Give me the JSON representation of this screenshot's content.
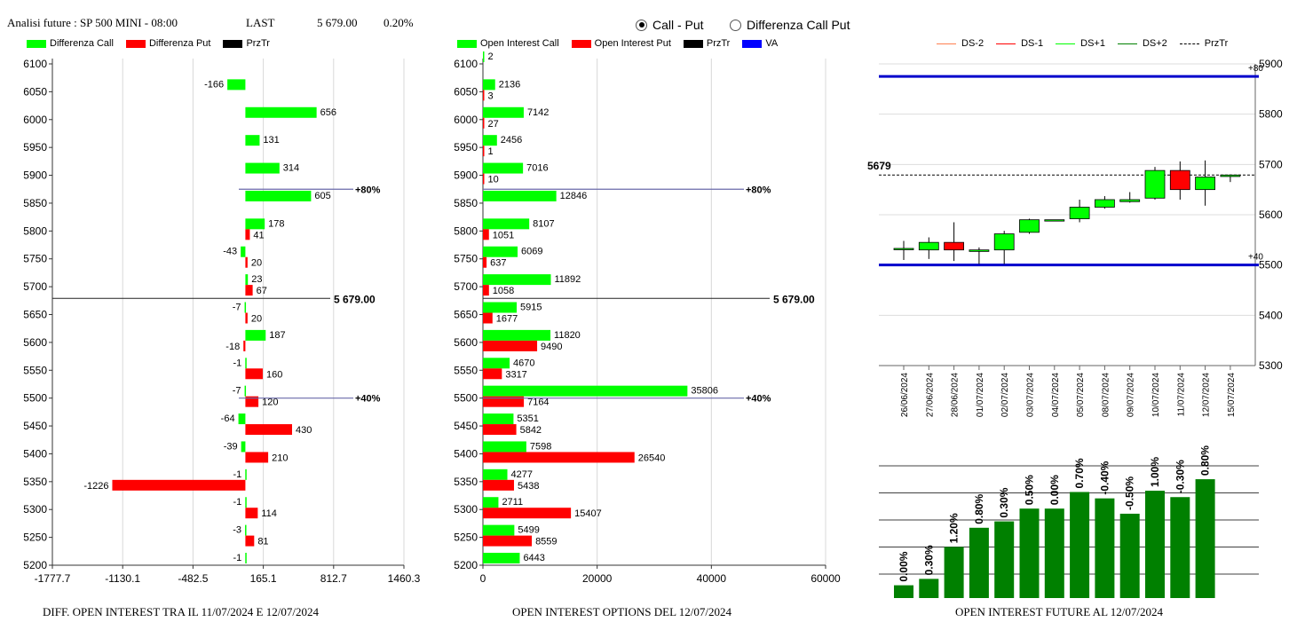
{
  "header": {
    "title": "Analisi future : SP 500 MINI - 08:00",
    "last_label": "LAST",
    "last_value": "5 679.00",
    "change": "0.20%"
  },
  "mode": {
    "option_call_put": "Call - Put",
    "option_diff": "Differenza Call Put",
    "selected": "Call - Put"
  },
  "panel1": {
    "legend": [
      {
        "label": "Differenza Call",
        "color": "#00ff00",
        "kind": "box"
      },
      {
        "label": "Differenza Put",
        "color": "#ff0000",
        "kind": "box"
      },
      {
        "label": "PrzTr",
        "color": "#000000",
        "kind": "box"
      }
    ],
    "caption": "DIFF. OPEN INTEREST TRA IL 11/07/2024 E 12/07/2024"
  },
  "panel2": {
    "legend": [
      {
        "label": "Open Interest Call",
        "color": "#00ff00",
        "kind": "box"
      },
      {
        "label": "Open Interest Put",
        "color": "#ff0000",
        "kind": "box"
      },
      {
        "label": "PrzTr",
        "color": "#000000",
        "kind": "box"
      },
      {
        "label": "VA",
        "color": "#0000ff",
        "kind": "box"
      }
    ],
    "caption": "OPEN INTEREST OPTIONS DEL 12/07/2024"
  },
  "panel3": {
    "legend": [
      {
        "label": "DS-2",
        "color": "#ff7f50",
        "kind": "line"
      },
      {
        "label": "DS-1",
        "color": "#ff0000",
        "kind": "line"
      },
      {
        "label": "DS+1",
        "color": "#00ff00",
        "kind": "line"
      },
      {
        "label": "DS+2",
        "color": "#008000",
        "kind": "line"
      },
      {
        "label": "PrzTr",
        "color": "#000000",
        "kind": "dash"
      }
    ],
    "caption": "OPEN INTEREST FUTURE AL 12/07/2024"
  },
  "chart_data": [
    {
      "type": "bar",
      "orientation": "horizontal",
      "categories": [
        6100,
        6050,
        6000,
        5950,
        5900,
        5850,
        5800,
        5750,
        5700,
        5650,
        5600,
        5550,
        5500,
        5450,
        5400,
        5350,
        5300,
        5250,
        5200
      ],
      "series": [
        {
          "name": "Differenza Call",
          "color": "#00ff00",
          "values": [
            null,
            -166,
            656,
            131,
            314,
            605,
            178,
            -43,
            23,
            -7,
            187,
            -1,
            -7,
            -64,
            -39,
            -1,
            -1,
            -3,
            -1
          ]
        },
        {
          "name": "Differenza Put",
          "color": "#ff0000",
          "values": [
            null,
            null,
            null,
            null,
            null,
            null,
            41,
            20,
            67,
            20,
            -18,
            160,
            120,
            430,
            210,
            -1226,
            114,
            81,
            null
          ]
        }
      ],
      "xlim": [
        -1777.7,
        1460.3
      ],
      "xticks": [
        "-1777.7",
        "-1130.1",
        "-482.5",
        "165.1",
        "812.7",
        "1460.3"
      ],
      "ylim": [
        5200,
        6100
      ],
      "reference_lines": [
        {
          "label": "5 679.00",
          "y": 5679,
          "color": "#000000"
        },
        {
          "label": "+80%",
          "y": 5875,
          "color": "#6a6aaa"
        },
        {
          "label": "+40%",
          "y": 5500,
          "color": "#6a6aaa"
        }
      ],
      "grid": "vertical"
    },
    {
      "type": "bar",
      "orientation": "horizontal",
      "categories": [
        6100,
        6050,
        6000,
        5950,
        5900,
        5850,
        5800,
        5750,
        5700,
        5650,
        5600,
        5550,
        5500,
        5450,
        5400,
        5350,
        5300,
        5250,
        5200
      ],
      "series": [
        {
          "name": "Open Interest Call",
          "color": "#00ff00",
          "values": [
            2,
            2136,
            7142,
            2456,
            7016,
            12846,
            8107,
            6069,
            11892,
            5915,
            11820,
            4670,
            35806,
            5351,
            7598,
            4277,
            2711,
            5499,
            6443
          ]
        },
        {
          "name": "Open Interest Put",
          "color": "#ff0000",
          "values": [
            null,
            3,
            27,
            1,
            10,
            null,
            1051,
            637,
            1058,
            1677,
            9490,
            3317,
            7164,
            5842,
            26540,
            5438,
            15407,
            8559,
            null
          ]
        }
      ],
      "xlim": [
        0,
        60000
      ],
      "xticks": [
        "0",
        "20000",
        "40000",
        "60000"
      ],
      "ylim": [
        5200,
        6100
      ],
      "reference_lines": [
        {
          "label": "5 679.00",
          "y": 5679,
          "color": "#000000"
        },
        {
          "label": "+80%",
          "y": 5875,
          "color": "#6a6aaa"
        },
        {
          "label": "+40%",
          "y": 5500,
          "color": "#6a6aaa"
        }
      ],
      "grid": "vertical"
    },
    {
      "type": "candlestick",
      "categories": [
        "26/06/2024",
        "27/06/2024",
        "28/06/2024",
        "01/07/2024",
        "02/07/2024",
        "03/07/2024",
        "04/07/2024",
        "05/07/2024",
        "08/07/2024",
        "09/07/2024",
        "10/07/2024",
        "11/07/2024",
        "12/07/2024",
        "15/07/2024"
      ],
      "candles": [
        {
          "o": 5533,
          "h": 5548,
          "l": 5510,
          "c": 5533,
          "color": "#00ff00"
        },
        {
          "o": 5530,
          "h": 5555,
          "l": 5512,
          "c": 5545,
          "color": "#00ff00"
        },
        {
          "o": 5545,
          "h": 5585,
          "l": 5508,
          "c": 5530,
          "color": "#ff0000"
        },
        {
          "o": 5530,
          "h": 5535,
          "l": 5502,
          "c": 5527,
          "color": "#00ff00"
        },
        {
          "o": 5530,
          "h": 5568,
          "l": 5502,
          "c": 5562,
          "color": "#00ff00"
        },
        {
          "o": 5565,
          "h": 5592,
          "l": 5562,
          "c": 5590,
          "color": "#00ff00"
        },
        {
          "o": 5590,
          "h": 5590,
          "l": 5590,
          "c": 5590,
          "color": "#00ff00"
        },
        {
          "o": 5592,
          "h": 5630,
          "l": 5585,
          "c": 5615,
          "color": "#00ff00"
        },
        {
          "o": 5615,
          "h": 5637,
          "l": 5612,
          "c": 5630,
          "color": "#00ff00"
        },
        {
          "o": 5626,
          "h": 5645,
          "l": 5624,
          "c": 5630,
          "color": "#00ff00"
        },
        {
          "o": 5633,
          "h": 5695,
          "l": 5630,
          "c": 5688,
          "color": "#00ff00"
        },
        {
          "o": 5688,
          "h": 5706,
          "l": 5630,
          "c": 5650,
          "color": "#ff0000"
        },
        {
          "o": 5650,
          "h": 5708,
          "l": 5618,
          "c": 5675,
          "color": "#00ff00"
        },
        {
          "o": 5676,
          "h": 5680,
          "l": 5665,
          "c": 5679,
          "color": "#00ff00"
        }
      ],
      "ylim": [
        5300,
        5900
      ],
      "yticks": [
        "5900",
        "5800",
        "5700",
        "5600",
        "5500",
        "5400",
        "5300"
      ],
      "price_label": "5679",
      "reference_lines": [
        {
          "label": "+80",
          "y": 5875,
          "color": "#0000cc"
        },
        {
          "label": "+40",
          "y": 5500,
          "color": "#0000cc"
        }
      ]
    },
    {
      "type": "bar",
      "color": "#008000",
      "labels": [
        "0.00%",
        "0.30%",
        "1.20%",
        "0.80%",
        "0.30%",
        "0.50%",
        "0.00%",
        "0.70%",
        "-0.40%",
        "-0.50%",
        "1.00%",
        "-0.30%",
        "0.80%"
      ],
      "values": [
        0.1,
        0.15,
        0.4,
        0.55,
        0.6,
        0.7,
        0.7,
        0.83,
        0.78,
        0.66,
        0.84,
        0.79,
        0.93
      ],
      "ylim": [
        0,
        1
      ]
    }
  ]
}
